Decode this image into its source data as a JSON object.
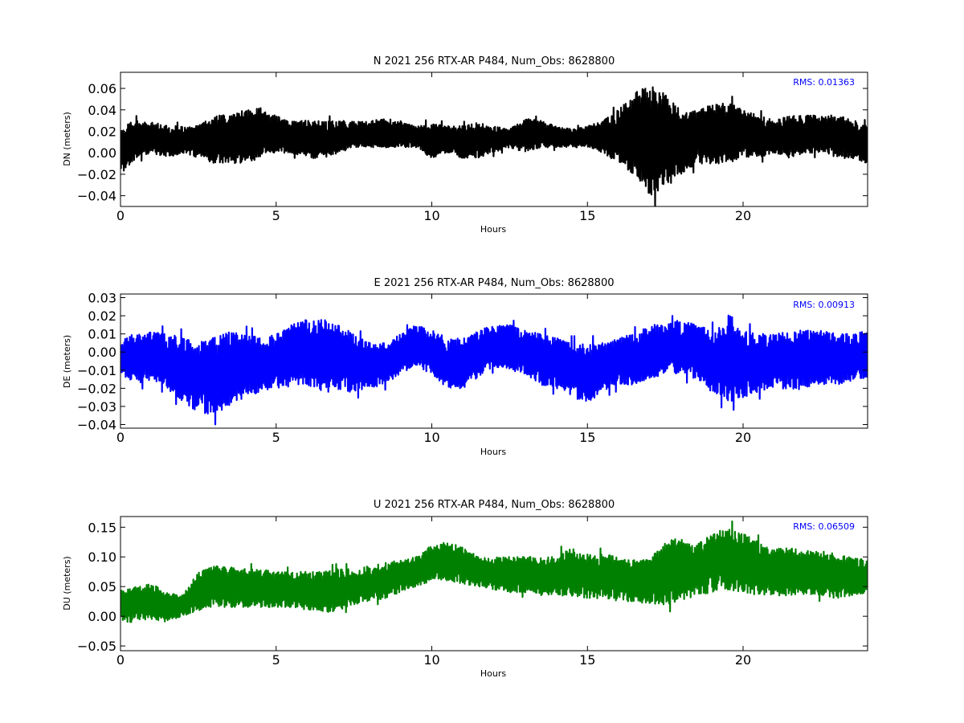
{
  "chart_data": [
    {
      "type": "line",
      "title": "N 2021 256 RTX-AR  P484, Num_Obs: 8628800",
      "xlabel": "Hours",
      "ylabel": "DN (meters)",
      "xlim": [
        0,
        24
      ],
      "ylim": [
        -0.05,
        0.075
      ],
      "xticks": [
        "0",
        "5",
        "10",
        "15",
        "20"
      ],
      "yticks": [
        "−0.04",
        "−0.02",
        "0.00",
        "0.02",
        "0.04",
        "0.06"
      ],
      "annotation": "RMS:  0.01363",
      "annotation_color": "#0000ff",
      "series_color": "#000000",
      "grid": false,
      "series": [
        {
          "x": [
            0,
            0.5,
            1,
            1.5,
            2,
            2.5,
            3,
            3.5,
            4,
            4.5,
            5,
            5.5,
            6,
            6.5,
            7,
            7.5,
            8,
            8.5,
            9,
            9.5,
            10,
            10.5,
            11,
            11.5,
            12,
            12.5,
            13,
            13.5,
            14,
            14.5,
            15,
            15.5,
            16,
            16.5,
            17,
            17.5,
            18,
            18.5,
            19,
            19.5,
            20,
            20.5,
            21,
            21.5,
            22,
            22.5,
            23,
            23.5,
            24
          ],
          "lo": [
            -0.02,
            -0.005,
            0,
            -0.005,
            0,
            -0.005,
            -0.01,
            -0.01,
            -0.01,
            -0.005,
            0,
            0,
            -0.005,
            -0.005,
            0,
            0.005,
            0.005,
            0.005,
            0.005,
            0.005,
            -0.005,
            0,
            -0.005,
            -0.005,
            0,
            0.005,
            0,
            0.005,
            0.005,
            0.005,
            0.005,
            0,
            -0.01,
            -0.02,
            -0.04,
            -0.035,
            -0.02,
            -0.01,
            -0.01,
            -0.01,
            -0.005,
            -0.005,
            0,
            -0.005,
            0,
            0,
            -0.005,
            -0.005,
            -0.01
          ],
          "hi": [
            0.025,
            0.03,
            0.03,
            0.025,
            0.025,
            0.025,
            0.035,
            0.035,
            0.04,
            0.042,
            0.035,
            0.03,
            0.03,
            0.03,
            0.03,
            0.03,
            0.03,
            0.032,
            0.03,
            0.025,
            0.028,
            0.025,
            0.025,
            0.028,
            0.025,
            0.022,
            0.032,
            0.03,
            0.025,
            0.022,
            0.025,
            0.03,
            0.04,
            0.055,
            0.065,
            0.055,
            0.04,
            0.04,
            0.045,
            0.048,
            0.04,
            0.035,
            0.03,
            0.035,
            0.035,
            0.035,
            0.035,
            0.032,
            0.025
          ]
        }
      ]
    },
    {
      "type": "line",
      "title": "E 2021 256 RTX-AR  P484, Num_Obs: 8628800",
      "xlabel": "Hours",
      "ylabel": "DE (meters)",
      "xlim": [
        0,
        24
      ],
      "ylim": [
        -0.042,
        0.032
      ],
      "xticks": [
        "0",
        "5",
        "10",
        "15",
        "20"
      ],
      "yticks": [
        "−0.04",
        "−0.03",
        "−0.02",
        "−0.01",
        "0.00",
        "0.01",
        "0.02",
        "0.03"
      ],
      "annotation": "RMS:  0.00913",
      "annotation_color": "#0000ff",
      "series_color": "#0000ff",
      "grid": false,
      "series": [
        {
          "x": [
            0,
            0.5,
            1,
            1.5,
            2,
            2.5,
            3,
            3.5,
            4,
            4.5,
            5,
            5.5,
            6,
            6.5,
            7,
            7.5,
            8,
            8.5,
            9,
            9.5,
            10,
            10.5,
            11,
            11.5,
            12,
            12.5,
            13,
            13.5,
            14,
            14.5,
            15,
            15.5,
            16,
            16.5,
            17,
            17.5,
            18,
            18.5,
            19,
            19.5,
            20,
            20.5,
            21,
            21.5,
            22,
            22.5,
            23,
            23.5,
            24
          ],
          "lo": [
            -0.012,
            -0.018,
            -0.015,
            -0.02,
            -0.028,
            -0.033,
            -0.035,
            -0.03,
            -0.025,
            -0.022,
            -0.02,
            -0.02,
            -0.018,
            -0.022,
            -0.022,
            -0.022,
            -0.02,
            -0.018,
            -0.012,
            -0.008,
            -0.012,
            -0.02,
            -0.02,
            -0.015,
            -0.008,
            -0.01,
            -0.012,
            -0.018,
            -0.02,
            -0.025,
            -0.028,
            -0.022,
            -0.018,
            -0.018,
            -0.015,
            -0.012,
            -0.012,
            -0.015,
            -0.022,
            -0.028,
            -0.025,
            -0.022,
            -0.02,
            -0.022,
            -0.02,
            -0.018,
            -0.018,
            -0.016,
            -0.015
          ],
          "hi": [
            0.008,
            0.01,
            0.012,
            0.01,
            0.008,
            0.005,
            0.008,
            0.012,
            0.01,
            0.008,
            0.01,
            0.015,
            0.018,
            0.018,
            0.015,
            0.01,
            0.005,
            0.005,
            0.01,
            0.015,
            0.012,
            0.008,
            0.008,
            0.012,
            0.015,
            0.015,
            0.012,
            0.01,
            0.008,
            0.005,
            0.005,
            0.005,
            0.008,
            0.01,
            0.015,
            0.015,
            0.018,
            0.015,
            0.012,
            0.015,
            0.012,
            0.01,
            0.01,
            0.012,
            0.012,
            0.012,
            0.01,
            0.01,
            0.012
          ]
        }
      ]
    },
    {
      "type": "line",
      "title": "U 2021 256 RTX-AR  P484, Num_Obs: 8628800",
      "xlabel": "Hours",
      "ylabel": "DU (meters)",
      "xlim": [
        0,
        24
      ],
      "ylim": [
        -0.058,
        0.168
      ],
      "xticks": [
        "0",
        "5",
        "10",
        "15",
        "20"
      ],
      "yticks": [
        "−0.05",
        "0.00",
        "0.05",
        "0.10",
        "0.15"
      ],
      "annotation": "RMS:  0.06509",
      "annotation_color": "#0000ff",
      "series_color": "#008000",
      "grid": false,
      "series": [
        {
          "x": [
            0,
            0.5,
            1,
            1.5,
            2,
            2.5,
            3,
            3.5,
            4,
            4.5,
            5,
            5.5,
            6,
            6.5,
            7,
            7.5,
            8,
            8.5,
            9,
            9.5,
            10,
            10.5,
            11,
            11.5,
            12,
            12.5,
            13,
            13.5,
            14,
            14.5,
            15,
            15.5,
            16,
            16.5,
            17,
            17.5,
            18,
            18.5,
            19,
            19.5,
            20,
            20.5,
            21,
            21.5,
            22,
            22.5,
            23,
            23.5,
            24
          ],
          "lo": [
            -0.01,
            -0.01,
            -0.005,
            -0.01,
            0,
            0.01,
            0.015,
            0.015,
            0.015,
            0.015,
            0.015,
            0.015,
            0.01,
            0.005,
            0.01,
            0.02,
            0.025,
            0.03,
            0.04,
            0.05,
            0.06,
            0.06,
            0.055,
            0.05,
            0.045,
            0.04,
            0.04,
            0.035,
            0.035,
            0.03,
            0.03,
            0.03,
            0.025,
            0.025,
            0.02,
            0.02,
            0.025,
            0.035,
            0.04,
            0.045,
            0.04,
            0.035,
            0.035,
            0.035,
            0.035,
            0.035,
            0.03,
            0.035,
            0.04
          ],
          "hi": [
            0.045,
            0.05,
            0.055,
            0.04,
            0.035,
            0.075,
            0.085,
            0.085,
            0.08,
            0.08,
            0.075,
            0.075,
            0.075,
            0.075,
            0.08,
            0.08,
            0.085,
            0.09,
            0.095,
            0.1,
            0.12,
            0.125,
            0.12,
            0.1,
            0.1,
            0.1,
            0.1,
            0.1,
            0.105,
            0.115,
            0.105,
            0.105,
            0.1,
            0.095,
            0.095,
            0.13,
            0.13,
            0.12,
            0.14,
            0.15,
            0.14,
            0.125,
            0.115,
            0.115,
            0.11,
            0.11,
            0.105,
            0.1,
            0.095
          ]
        }
      ]
    }
  ]
}
